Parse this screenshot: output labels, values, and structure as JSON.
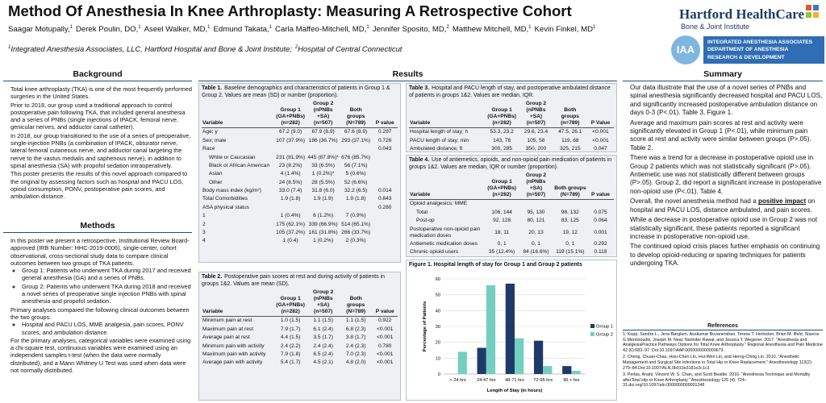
{
  "header": {
    "title": "Method Of Anesthesia In Knee Arthroplasty: Measuring A Retrospective Cohort",
    "authors": [
      {
        "name": "Saagar Motupally,",
        "sup": "1"
      },
      {
        "name": "Derek Poulin, DO,",
        "sup": "1"
      },
      {
        "name": "Aseel Walker, MD,",
        "sup": "1"
      },
      {
        "name": "Edmund Takata,",
        "sup": "1"
      },
      {
        "name": "Carla Maffeo-Mitchell, MD,",
        "sup": "1"
      },
      {
        "name": "Jennifer Sposito, MD,",
        "sup": "2"
      },
      {
        "name": "Matthew Mitchell, MD,",
        "sup": "1"
      },
      {
        "name": "Kevin Finkel, MD",
        "sup": "1"
      }
    ],
    "affiliations": [
      {
        "sup": "1",
        "text": "Integrated Anesthesia Associates, LLC, Hartford Hospital and Bone & Joint Institute;"
      },
      {
        "sup": "2",
        "text": "Hospital of Central Connecticut"
      }
    ],
    "logo1": {
      "name": "Hartford HealthCare",
      "sub": "Bone & Joint Institute"
    },
    "logo2": {
      "mark": "IAA",
      "lines": [
        "INTEGRATED ANESTHESIA ASSOCIATES",
        "DEPARTMENT OF ANESTHESIA",
        "RESEARCH & DEVELOPMENT"
      ]
    }
  },
  "background": {
    "heading": "Background",
    "bullets": [
      "Total knee arthroplasty (TKA) is one of the most frequently performed surgeries in the United States.",
      "Prior to 2018, our group used a traditional approach to control postoperative pain following TKA, that included general anesthesia and a series of PNBs (single injections of IPACK, femoral nerve, genicular nerves, and adductor canal catheter).",
      "In 2018, our group transitioned to the use of a series of preoperative, single-injection PNBs (a combination of IPACK, obturator nerve, lateral femoral cutaneous nerve, and adductor canal targeting the nerve to the vastus medialis and saphenous nerve), in addition to spinal anesthesia (SA) with propofol sedation intraoperatively.",
      "This poster presents the results of this novel approach compared to the original by assessing factors such as hospital and PACU LOS, opioid consumption, PONV, postoperative pain scores, and ambulation distance."
    ]
  },
  "methods": {
    "heading": "Methods",
    "bullets": [
      {
        "text": "In this poster we present a retrospective, Institutional Review Board-approved (IRB Number: HHC-2019-0006), single-center, cohort observational, cross-sectional study data to compare clinical outcomes between two groups of TKA patients.",
        "sub": [
          "Group 1: Patients who underwent TKA during 2017 and received general anesthesia (GA) and a series of PNBs.",
          "Group 2: Patients who underwent TKA during 2018 and received a novel series of preoperative single injection PNBs with spinal anesthesia and propofol sedation."
        ]
      },
      {
        "text": "Primary analyses compared the following clinical outcomes between the two groups:",
        "sub": [
          "Hospital and PACU LOS, MME analgesia, pain scores, PONV scores, and ambulation distance."
        ]
      },
      "For the primary analyses, categorical variables were examined using a chi-square test, continuous variables were examined using an independent samples t-test (when the data were normally distributed), and a Mann Whitney U Test was used when data were not normally distributed."
    ]
  },
  "results": {
    "heading": "Results",
    "tables": [
      {
        "label": "Table 1.",
        "caption": "Baseline demographics and characteristics of patients in Group 1 & Group 2. Values are mean (SD) or number (proportion).",
        "header": [
          "Variable",
          "Group 1\n(GA+PNBs)\n(n=282)",
          "Group 2\n(nPNBs +SA)\n(n=507)",
          "Both groups\n(N=789)",
          "P value"
        ],
        "rows": [
          [
            "Age; y",
            "67.2 (9.0)",
            "67.9 (8.9)",
            "67.6 (8.9)",
            "0.297"
          ],
          [
            "Sex; male",
            "107 (37.9%)",
            "186 (36.7%)",
            "293 (37.1%)",
            "0.726"
          ],
          [
            "Race",
            null,
            null,
            null,
            "0.043"
          ],
          [
            "White or Caucasian",
            "231 (81.9%)",
            "445 (87.8%)*",
            "676 (85.7%)",
            null
          ],
          [
            "Black or African American",
            "23 (8.2%)",
            "33 (6.5%)",
            "56 (7.1%)",
            null
          ],
          [
            "Asian",
            "4 (1.4%)",
            "1 (0.2%)*",
            "5 (0.6%)",
            null
          ],
          [
            "Other",
            "24 (8.5%)",
            "28 (5.5%)",
            "52 (6.6%)",
            null
          ],
          [
            "Body mass index (kg/m²)",
            "33.0 (7.4)",
            "31.8 (6.0)",
            "32.2 (6.5)",
            "0.014"
          ],
          [
            "Total Comorbidities",
            "1.9 (1.8)",
            "1.9 (1.9)",
            "1.9 (1.8)",
            "0.843"
          ],
          [
            "ASA physical status",
            null,
            null,
            null,
            "0.280"
          ],
          [
            "1",
            "1 (0.4%)",
            "6 (1.2%)",
            "7 (0.9%)",
            null
          ],
          [
            "2",
            "175 (62.1%)",
            "339 (66.9%)",
            "514 (65.1%)",
            null
          ],
          [
            "3",
            "105 (37.2%)",
            "161 (31.8%)",
            "266 (33.7%)",
            null
          ],
          [
            "4",
            "1 (0.4)",
            "1 (0.2%)",
            "2 (0.3%)",
            null
          ]
        ]
      },
      {
        "label": "Table 2.",
        "caption": "Postoperative pain scores at rest and during activity of patients in groups 1&2. Values are mean (SD).",
        "header": [
          "Variable",
          "Group 1\n(GA+PNBs)\n(n=282)",
          "Group 2\n(nPNBs +SA)\n(n=507)",
          "Both groups\n(N=789)",
          "P value"
        ],
        "rows": [
          [
            "Minimum pain at rest",
            "1.0 (1.5)",
            "1.1 (1.5)",
            "1.1 (1.5)",
            "0.922"
          ],
          [
            "Maximum pain at rest",
            "7.9 (1.7)",
            "6.1 (2.4)",
            "6.8 (2.3)",
            "<0.001"
          ],
          [
            "Average pain at rest",
            "4.4 (1.5)",
            "3.5 (1.7)",
            "3.8 (1.7)",
            "<0.001"
          ],
          [
            "Minimum pain with activity",
            "2.4 (2.2)",
            "2.4 (2.4)",
            "2.4 (2.3)",
            "0.780"
          ],
          [
            "Maximum pain with activity",
            "7.9 (1.8)",
            "6.5 (2.4)",
            "7.0 (2.3)",
            "<0.001"
          ],
          [
            "Average pain with activity",
            "5.4 (1.7)",
            "4.5 (2.1)",
            "4.8 (2.0)",
            "<0.001"
          ]
        ]
      },
      {
        "label": "Table 3.",
        "caption": "Hospital and PACU length of stay, and postoperative ambulated distance of patients in groups 1&2. Values are median, IQR.",
        "header": [
          "Variable",
          "Group 1\n(GA+PNBs)\n(n=282)",
          "Group 2\n(nPNBs +SA)\n(n=507)",
          "Both\ngroups\n(n=789)",
          "P Value"
        ],
        "rows": [
          [
            "Hospital length of stay; h",
            "53.3, 23.2",
            "29.6, 23.4",
            "47.5, 26.1",
            "<0.001"
          ],
          [
            "PACU length of stay; min",
            "143, 78",
            "105, 58",
            "119, 68",
            "<0.001"
          ],
          [
            "Ambulated distance; ft",
            "300, 285",
            "350, 200",
            "325, 215",
            "0.047"
          ]
        ]
      },
      {
        "label": "Table 4.",
        "caption": "Use of antiemetics, opioids, and non-opioid pain medication of patients in groups 1&2. Values are median, IQR or number (proportion).",
        "header": [
          "Variable",
          "Group 1\n(GA+PNBs)\n(n=282)",
          "Group 2\n(nPNBs +SA)\n(n=507)",
          "Both groups\n(N=789)",
          "P value"
        ],
        "rows": [
          [
            "Opioid analgesics; MME",
            null,
            null,
            null,
            null
          ],
          [
            "Total",
            "106, 144",
            "95, 130",
            "98, 132",
            "0.075"
          ],
          [
            "Post-op",
            "92, 128",
            "80, 121",
            "83, 125",
            "0.064"
          ],
          [
            "Postoperative non-opioid pain medication doses",
            "18, 11",
            "20, 13",
            "19, 12",
            "0.001"
          ],
          [
            "Antiemetic medication doses",
            "0, 1",
            "0, 1",
            "0, 1",
            "0.292"
          ],
          [
            "Chronic opioid users",
            "35 (12.4%)",
            "84 (16.6%)",
            "119 (15.1%)",
            "0.118"
          ]
        ]
      }
    ]
  },
  "chart_data": {
    "type": "bar",
    "title": "Figure 1. Hospital length of stay for Group 1 and Group 2 patients",
    "categories": [
      "< 24 hrs",
      "24-47 hrs",
      "48-71 hrs",
      "72-95 hrs",
      "96 + hrs"
    ],
    "series": [
      {
        "name": "Group 1",
        "color": "#1f3a68",
        "values": [
          0,
          16.5,
          57,
          21,
          5
        ]
      },
      {
        "name": "Group 2",
        "color": "#74cfc0",
        "values": [
          14,
          56,
          22.5,
          5,
          2
        ]
      }
    ],
    "ylim": [
      0,
      60
    ],
    "yticks": [
      0,
      10,
      20,
      30,
      40,
      50,
      60
    ],
    "xlabel": "Length of Stay (in hours)",
    "ylabel": "Percentage of Patients",
    "grid": true,
    "legend": "right"
  },
  "summary": {
    "heading": "Summary",
    "bullets": [
      "Our data illustrate that the use of a novel series of PNBs and spinal anesthesia significantly decreased hospital and PACU LOS, and significantly increased postoperative ambulation distance on days 0-3 (P<.01). Table 3, Figure 1.",
      "Average and maximum pain scores at rest and activity were significantly elevated in Group 1 (P<.01), while minimum pain score at rest and activity were similar between groups (P>.05). Table 2.",
      "There was a trend for a decrease in postoperative opioid use in Group 2 patients which was not statistically significant (P>.05). Antiemetic use was not statistically different between groups (P>.05). Group 2, did report a significant increase in postoperative non-opioid use (P<.01). Table 4.",
      {
        "parts": [
          "Overall, the novel anesthesia method had a ",
          "positive impact",
          " on hospital and PACU LOS, distance ambulated, and pain scores."
        ]
      },
      "While a decrease in postoperative opioid use in Group 2 was not statistically significant, these patients reported a significant increase in postoperative non-opioid use.",
      "The continued opioid crisis places further emphasis on continuing to develop opioid-reducing or sparing techniques for patients undergoing TKA."
    ]
  },
  "references": {
    "heading": "References",
    "items": [
      "1. Kopp, Sandra L., Jens Børglum, Asokumar Buvanendran, Terese T. Horlocker, Brian M. Ilfeld, Stavros G.Memtsoudis, Joseph M. Neal, Narinder Rawal, and Jessica T. Wegener. 2017. \"Anesthesia and AnalgesiaPractice Pathways Options for Total Knee Arthroplasty.\" Regional Anesthesia and Pain Medicine 42 (6):683–97. Doi:10.1097/AAP.0000000000000673.",
      "2. Cheng, Chuan-Chau, Hsiu-Chen Lin, Hui-Wen Lin, and Herng-Ching Lin. 2010. \"Anesthetic Management and Surgical Site Infections in Total Hip or Knee Replacement.\" Anesthesiology 113(2): 279–84.Doi:10.1097/ALN.0b013e3181e2c1c3",
      "3. Perlas, Anahi, Vincent W. S. Chan, and Scott Beattie. 2016. \"Anesthesia Technique and Mortality afterTotal Hip or Knee Arthroplasty.\" Anesthesiology 125 (4): 724–31.doi.org/10.1097/aln.0000000000001248"
    ]
  }
}
